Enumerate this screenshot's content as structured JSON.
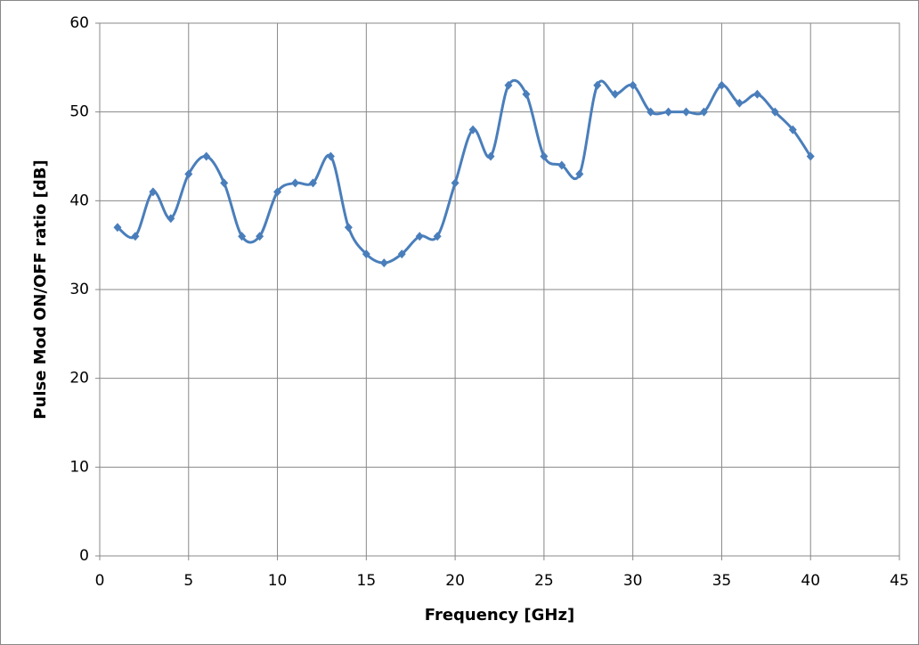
{
  "chart_data": {
    "type": "line",
    "x_label": "Frequency [GHz]",
    "y_label": "Pulse Mod ON/OFF ratio [dB]",
    "x": [
      1,
      2,
      3,
      4,
      5,
      6,
      7,
      8,
      9,
      10,
      11,
      12,
      13,
      14,
      15,
      16,
      17,
      18,
      19,
      20,
      21,
      22,
      23,
      24,
      25,
      26,
      27,
      28,
      29,
      30,
      31,
      32,
      33,
      34,
      35,
      36,
      37,
      38,
      39,
      40
    ],
    "values": [
      37,
      36,
      41,
      38,
      43,
      45,
      42,
      36,
      36,
      41,
      42,
      42,
      45,
      37,
      34,
      33,
      34,
      36,
      36,
      42,
      48,
      45,
      53,
      52,
      45,
      44,
      43,
      53,
      52,
      53,
      50,
      50,
      50,
      50,
      53,
      51,
      52,
      50,
      48,
      45
    ],
    "color": "#4a7ebb",
    "smooth": true,
    "xlim": [
      0,
      45
    ],
    "xticks": [
      0,
      5,
      10,
      15,
      20,
      25,
      30,
      35,
      40,
      45
    ],
    "ylim": [
      0,
      60
    ],
    "yticks": [
      0,
      10,
      20,
      30,
      40,
      50,
      60
    ],
    "grid": true
  }
}
